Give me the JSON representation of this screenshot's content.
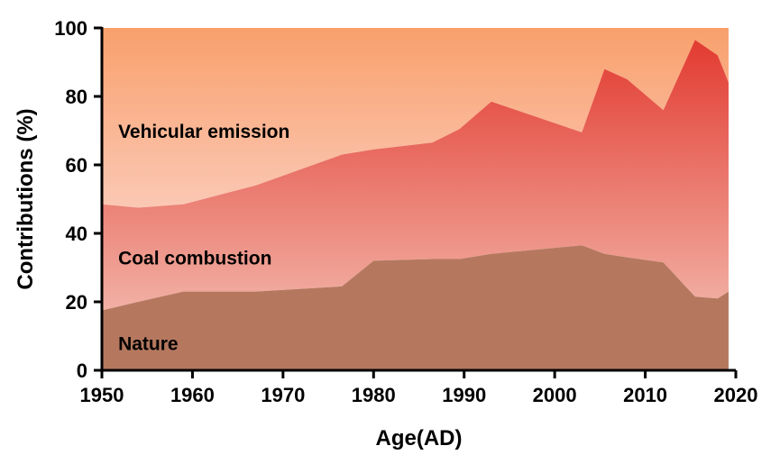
{
  "chart_data": {
    "type": "area",
    "stacked": true,
    "xlabel": "Age(AD)",
    "ylabel": "Contributions (%)",
    "xlim": [
      1950,
      2020
    ],
    "ylim": [
      0,
      100
    ],
    "xticks": [
      1950,
      1960,
      1970,
      1980,
      1990,
      2000,
      2010,
      2020
    ],
    "yticks": [
      0,
      20,
      40,
      60,
      80,
      100
    ],
    "grid": false,
    "legend": "none",
    "x": [
      1950,
      1954,
      1959,
      1967,
      1976.5,
      1980,
      1986.5,
      1989.5,
      1993,
      2003,
      2005.5,
      2008,
      2012,
      2015.5,
      2018,
      2019.2
    ],
    "series": [
      {
        "name": "Nature",
        "color": "#b5785f",
        "values": [
          17.5,
          20,
          23,
          23,
          24.5,
          32,
          32.5,
          32.5,
          34,
          36.5,
          34,
          33,
          31.5,
          21.5,
          21,
          23
        ]
      },
      {
        "name": "Coal combustion",
        "colors": [
          "#f2b0a4",
          "#e23b31"
        ],
        "values": [
          31,
          27.5,
          25.5,
          31,
          38.5,
          32.5,
          34,
          38,
          44.5,
          33,
          54,
          52,
          44.5,
          75,
          71,
          61
        ]
      },
      {
        "name": "Vehicular emission",
        "colors": [
          "#f8a06c",
          "#fbc8b4"
        ],
        "values": [
          51.5,
          52.5,
          51.5,
          46,
          37,
          35.5,
          33.5,
          29.5,
          21.5,
          30.5,
          12,
          15,
          24,
          3.5,
          8,
          16
        ]
      }
    ],
    "annotations": [
      {
        "text": "Vehicular emission",
        "x": 1951.5,
        "y": 70
      },
      {
        "text": "Coal combustion",
        "x": 1951.5,
        "y": 33
      },
      {
        "text": "Nature",
        "x": 1951.5,
        "y": 8
      }
    ]
  }
}
